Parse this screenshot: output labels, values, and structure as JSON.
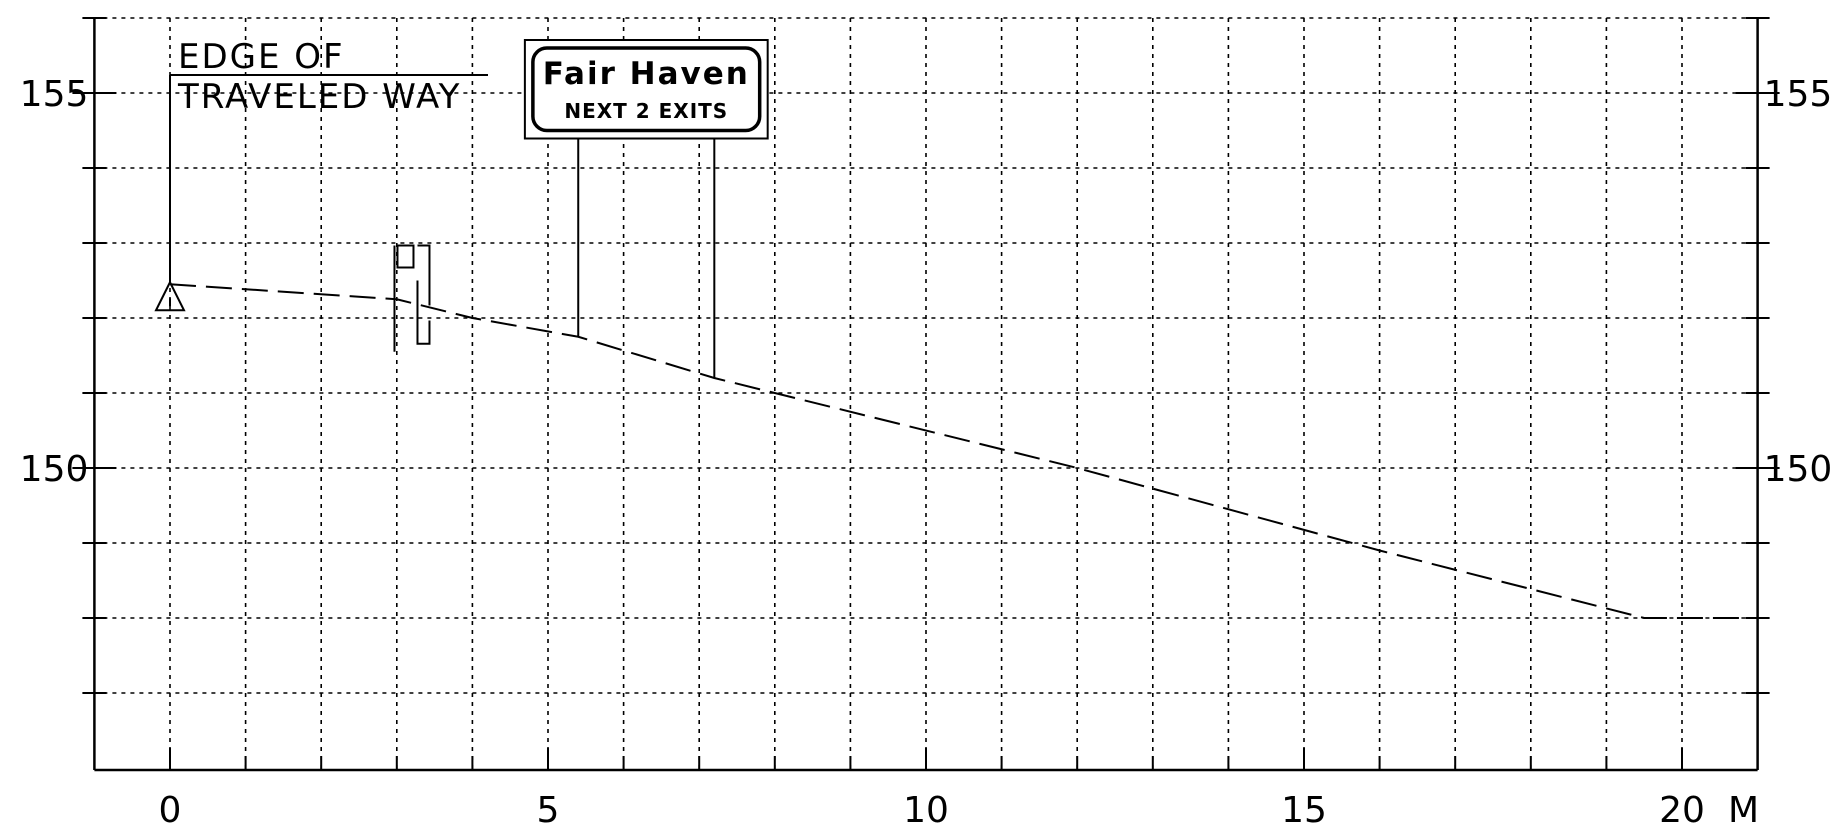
{
  "x_axis": {
    "unit": "M",
    "min": -1,
    "max": 21,
    "ticks": [
      0,
      5,
      10,
      15,
      20
    ],
    "tick_labels": [
      "0",
      "5",
      "10",
      "15",
      "20"
    ]
  },
  "y_axis": {
    "min": 146,
    "max": 156,
    "ticks": [
      155,
      150
    ],
    "tick_labels": [
      "155",
      "150"
    ]
  },
  "grid": {
    "x_step": 1,
    "y_step": 1,
    "style": "dotted"
  },
  "reference_label": {
    "line1": "EDGE OF",
    "line2": "TRAVELED WAY"
  },
  "sign": {
    "title": "Fair Haven",
    "subtitle": "NEXT 2 EXITS",
    "panel_x": [
      4.8,
      7.8
    ],
    "panel_y": [
      154.5,
      155.6
    ],
    "post_x": [
      5.4,
      7.2
    ]
  },
  "ground_profile": {
    "style": "dashed",
    "points": [
      [
        0,
        152.45
      ],
      [
        3,
        152.25
      ],
      [
        4,
        152.0
      ],
      [
        5.4,
        151.75
      ],
      [
        7.2,
        151.2
      ],
      [
        8,
        151.0
      ],
      [
        12,
        150.0
      ],
      [
        16,
        148.9
      ],
      [
        19.5,
        148.0
      ],
      [
        21,
        148.0
      ]
    ]
  },
  "edge_point": {
    "x": 0,
    "y": 152.45
  },
  "roadside_device": {
    "x": 3.3,
    "y_top": 152.9,
    "y_bottom": 151.55
  },
  "colors": {
    "line": "#000000",
    "background": "#ffffff"
  }
}
